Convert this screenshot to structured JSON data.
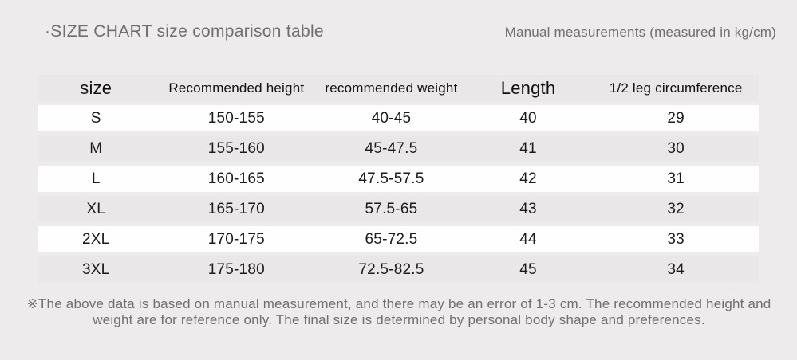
{
  "page": {
    "title": "·SIZE CHART size comparison table",
    "measure_note": "Manual measurements (measured in kg/cm)",
    "footnote": "※The above data is based on manual measurement, and there may be an error of 1-3 cm. The recommended height and weight are for reference only. The final size is determined by personal body shape and preferences."
  },
  "colors": {
    "page_bg": "#edebec",
    "band_gray": "#e9e7e8",
    "band_white": "#fefefe",
    "text_dark": "#1b1b1b",
    "text_gray": "#6f6f6f"
  },
  "chart_data": {
    "type": "table",
    "title": "SIZE CHART size comparison table",
    "headers": [
      "size",
      "Recommended height",
      "recommended weight",
      "Length",
      "1/2 leg circumference"
    ],
    "rows": [
      [
        "S",
        "150-155",
        "40-45",
        "40",
        "29"
      ],
      [
        "M",
        "155-160",
        "45-47.5",
        "41",
        "30"
      ],
      [
        "L",
        "160-165",
        "47.5-57.5",
        "42",
        "31"
      ],
      [
        "XL",
        "165-170",
        "57.5-65",
        "43",
        "32"
      ],
      [
        "2XL",
        "170-175",
        "65-72.5",
        "44",
        "33"
      ],
      [
        "3XL",
        "175-180",
        "72.5-82.5",
        "45",
        "34"
      ]
    ],
    "units": "kg/cm",
    "layout": "alternating row bands: header gray, then white/gray stripes"
  }
}
